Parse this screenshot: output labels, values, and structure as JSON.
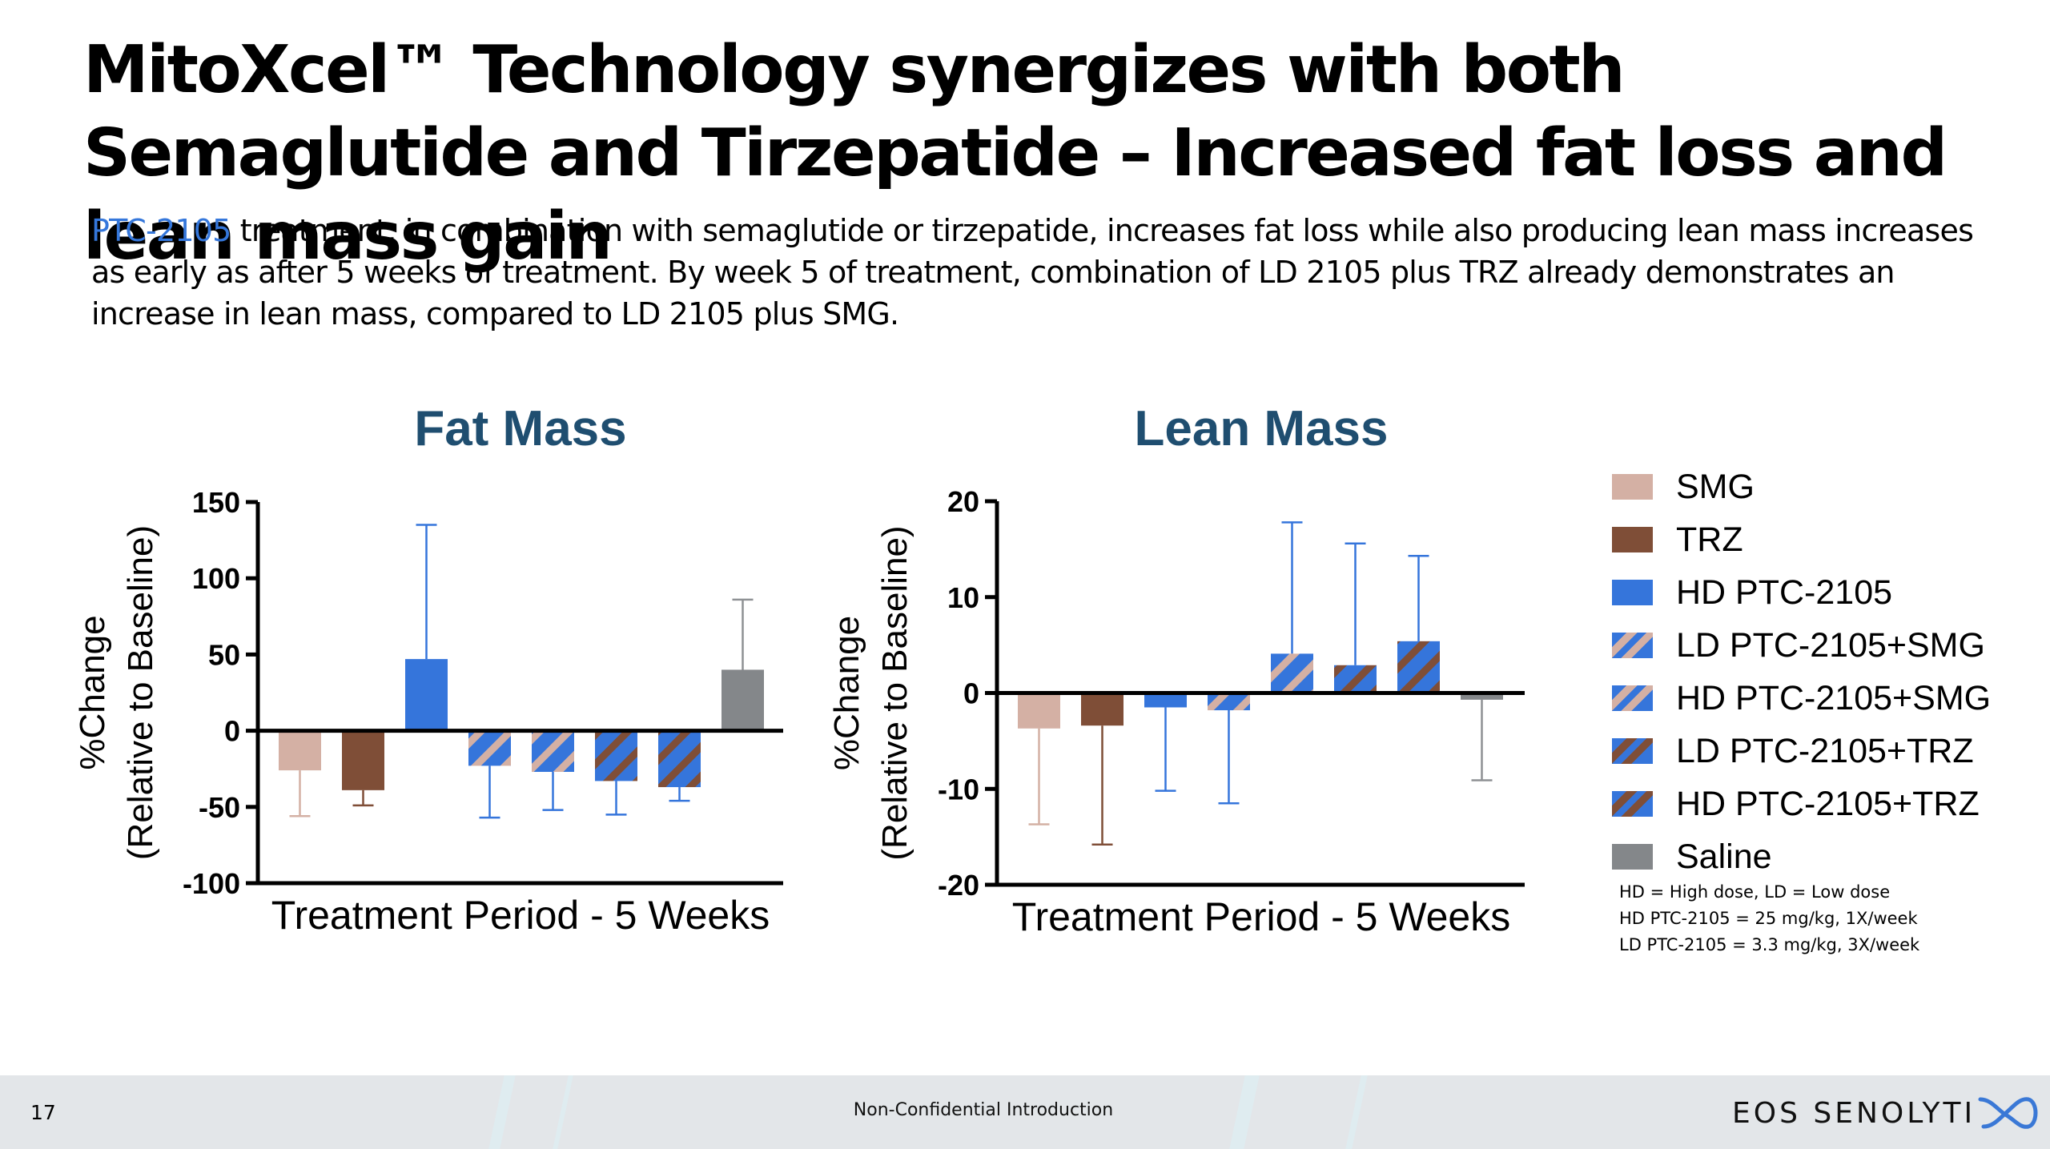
{
  "slide": {
    "title": "MitoXcel™ Technology synergizes with both Semaglutide and Tirzepatide – Increased fat loss and lean mass gain",
    "subtitle_highlight": "PTC-2105",
    "subtitle_rest": " treatment, in combination with semaglutide or tirzepatide, increases fat loss while also producing lean mass increases as early as after 5 weeks of treatment.  By week 5 of treatment, combination of LD 2105 plus TRZ already demonstrates an increase in lean mass, compared to LD 2105 plus SMG.",
    "highlight_color": "#3577db"
  },
  "legend": {
    "items": [
      {
        "label": "SMG",
        "fill": "#d4b0a4",
        "stripe": null
      },
      {
        "label": "TRZ",
        "fill": "#7f4e37",
        "stripe": null
      },
      {
        "label": "HD PTC-2105",
        "fill": "#3575db",
        "stripe": null
      },
      {
        "label": "LD PTC-2105+SMG",
        "fill": "#3575db",
        "stripe": "#d4b0a4"
      },
      {
        "label": "HD PTC-2105+SMG",
        "fill": "#3575db",
        "stripe": "#d4b0a4"
      },
      {
        "label": "LD PTC-2105+TRZ",
        "fill": "#3575db",
        "stripe": "#7f4e37"
      },
      {
        "label": "HD PTC-2105+TRZ",
        "fill": "#3575db",
        "stripe": "#7f4e37"
      },
      {
        "label": "Saline",
        "fill": "#84878a",
        "stripe": null
      }
    ],
    "notes": [
      "HD = High dose, LD = Low dose",
      "HD PTC-2105 = 25 mg/kg, 1X/week",
      "LD PTC-2105 = 3.3 mg/kg, 3X/week"
    ]
  },
  "chart_data": [
    {
      "type": "bar",
      "title": "Fat Mass",
      "xlabel": "Treatment Period - 5 Weeks",
      "ylabel_line1": "%Change",
      "ylabel_line2": "(Relative to Baseline)",
      "ylim": [
        -100,
        150
      ],
      "yticks": [
        150,
        100,
        50,
        0,
        -50,
        -100
      ],
      "categories": [
        "SMG",
        "TRZ",
        "HD PTC-2105",
        "LD PTC-2105+SMG",
        "HD PTC-2105+SMG",
        "LD PTC-2105+TRZ",
        "HD PTC-2105+TRZ",
        "Saline"
      ],
      "values": [
        -26,
        -39,
        47,
        -23,
        -27,
        -33,
        -37,
        40
      ],
      "error_bar_ends": [
        -56,
        -49,
        135,
        -57,
        -52,
        -55,
        -46,
        86
      ],
      "grid": false
    },
    {
      "type": "bar",
      "title": "Lean Mass",
      "xlabel": "Treatment Period - 5 Weeks",
      "ylabel_line1": "%Change",
      "ylabel_line2": "(Relative to Baseline)",
      "ylim": [
        -20,
        20
      ],
      "yticks": [
        20,
        10,
        0,
        -10,
        -20
      ],
      "categories": [
        "SMG",
        "TRZ",
        "HD PTC-2105",
        "LD PTC-2105+SMG",
        "HD PTC-2105+SMG",
        "LD PTC-2105+TRZ",
        "HD PTC-2105+TRZ",
        "Saline"
      ],
      "values": [
        -3.7,
        -3.4,
        -1.5,
        -1.8,
        4.1,
        2.9,
        5.4,
        -0.7
      ],
      "error_bar_ends": [
        -13.7,
        -15.8,
        -10.2,
        -11.5,
        17.8,
        15.6,
        14.3,
        -9.1
      ],
      "grid": false
    }
  ],
  "footer": {
    "page_number": "17",
    "center_text": "Non-Confidential Introduction",
    "logo_text": "EOS SENOLYTI",
    "logo_accent_color": "#3a78d6"
  }
}
